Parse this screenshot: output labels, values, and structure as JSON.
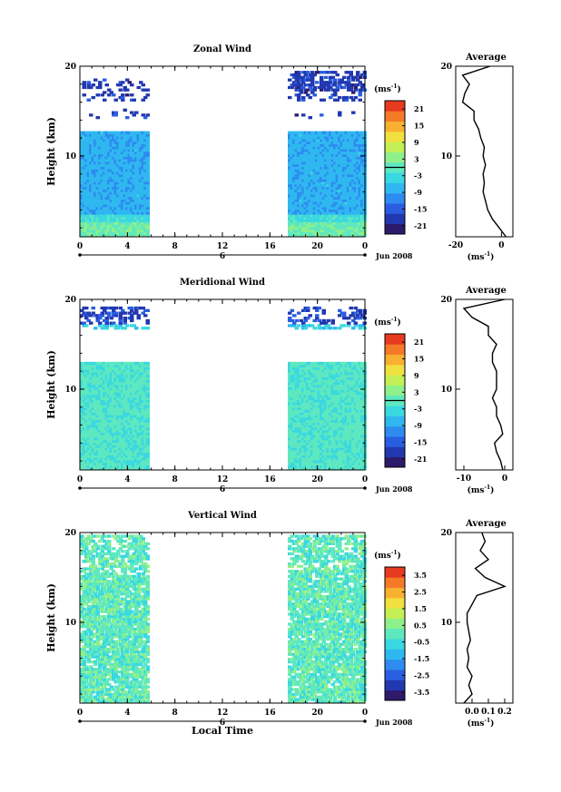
{
  "chart_data": [
    {
      "type": "heatmap",
      "title": "Zonal Wind",
      "ylabel": "Height (km)",
      "xlim": [
        0,
        24
      ],
      "ylim": [
        1,
        20
      ],
      "x_ticks": [
        "0",
        "4",
        "8",
        "12",
        "16",
        "20",
        "0"
      ],
      "y_ticks": [
        "10",
        "20"
      ],
      "date_label": "6",
      "month_label": "Jun 2008",
      "data_spans_hours": [
        [
          0,
          5.7
        ],
        [
          17.5,
          24
        ]
      ],
      "colorbar": {
        "unit": "(ms",
        "unit_sup": "-1",
        "unit_close": ")",
        "min": -24,
        "max": 24,
        "zero_line": 0,
        "tick_values": [
          21,
          15,
          9,
          3,
          -3,
          -9,
          -15,
          -21
        ],
        "tick_labels": [
          "21",
          "15",
          "9",
          "3",
          "-3",
          "-9",
          "-15",
          "-21"
        ]
      },
      "profile": {
        "title": "Average",
        "xlim": [
          -20,
          5
        ],
        "x_ticks": [
          "-20",
          "0"
        ],
        "y_ticks": [
          "10",
          "20"
        ],
        "xlabel": "(ms",
        "xlabel_sup": "-1",
        "xlabel_close": ")",
        "heights": [
          1,
          2,
          3,
          4,
          5,
          6,
          7,
          8,
          9,
          10,
          11,
          12,
          13,
          14,
          15,
          16,
          17,
          18,
          19,
          20
        ],
        "values": [
          2,
          -1,
          -4,
          -6,
          -7,
          -8,
          -7.5,
          -8,
          -7,
          -8,
          -7.5,
          -9,
          -10,
          -12,
          -12,
          -17,
          -16,
          -14,
          -17,
          -5
        ]
      }
    },
    {
      "type": "heatmap",
      "title": "Meridional Wind",
      "ylabel": "Height (km)",
      "xlim": [
        0,
        24
      ],
      "ylim": [
        1,
        20
      ],
      "x_ticks": [
        "0",
        "4",
        "8",
        "12",
        "16",
        "20",
        "0"
      ],
      "y_ticks": [
        "10",
        "20"
      ],
      "date_label": "6",
      "month_label": "Jun 2008",
      "data_spans_hours": [
        [
          0,
          5.7
        ],
        [
          17.5,
          24
        ]
      ],
      "colorbar": {
        "unit": "(ms",
        "unit_sup": "-1",
        "unit_close": ")",
        "min": -24,
        "max": 24,
        "zero_line": 0,
        "tick_values": [
          21,
          15,
          9,
          3,
          -3,
          -9,
          -15,
          -21
        ],
        "tick_labels": [
          "21",
          "15",
          "9",
          "3",
          "-3",
          "-9",
          "-15",
          "-21"
        ]
      },
      "profile": {
        "title": "Average",
        "xlim": [
          -12,
          2
        ],
        "x_ticks": [
          "-10",
          "0"
        ],
        "y_ticks": [
          "10",
          "20"
        ],
        "xlabel": "(ms",
        "xlabel_sup": "-1",
        "xlabel_close": ")",
        "heights": [
          1,
          2,
          3,
          4,
          5,
          6,
          7,
          8,
          9,
          10,
          11,
          12,
          13,
          14,
          15,
          16,
          17,
          18,
          19,
          20
        ],
        "values": [
          -0.5,
          -1,
          -2,
          -2.5,
          -0.5,
          -1,
          -2,
          -2,
          -3,
          -2,
          -2,
          -2,
          -3,
          -3,
          -2,
          -4,
          -4,
          -8,
          -10,
          0
        ]
      }
    },
    {
      "type": "heatmap",
      "title": "Vertical Wind",
      "ylabel": "Height (km)",
      "xlabel": "Local Time",
      "xlim": [
        0,
        24
      ],
      "ylim": [
        1,
        20
      ],
      "x_ticks": [
        "0",
        "4",
        "8",
        "12",
        "16",
        "20",
        "0"
      ],
      "y_ticks": [
        "10",
        "20"
      ],
      "date_label": "6",
      "month_label": "Jun 2008",
      "data_spans_hours": [
        [
          0,
          5.7
        ],
        [
          17.5,
          24
        ]
      ],
      "colorbar": {
        "unit": "(ms",
        "unit_sup": "-1",
        "unit_close": ")",
        "min": -4,
        "max": 4,
        "tick_values": [
          3.5,
          2.5,
          1.5,
          0.5,
          -0.5,
          -1.5,
          -2.5,
          -3.5
        ],
        "tick_labels": [
          "3.5",
          "2.5",
          "1.5",
          "0.5",
          "-0.5",
          "-1.5",
          "-2.5",
          "-3.5"
        ]
      },
      "profile": {
        "title": "Average",
        "xlim": [
          -0.1,
          0.25
        ],
        "x_ticks": [
          "0.0",
          "0.1",
          "0.2"
        ],
        "y_ticks": [
          "10",
          "20"
        ],
        "xlabel": "(ms",
        "xlabel_sup": "-1",
        "xlabel_close": ")",
        "heights": [
          1,
          2,
          3,
          4,
          5,
          6,
          7,
          8,
          9,
          10,
          11,
          12,
          13,
          14,
          15,
          16,
          17,
          18,
          19,
          20
        ],
        "values": [
          -0.05,
          0.0,
          -0.02,
          0.0,
          -0.03,
          -0.02,
          -0.03,
          -0.01,
          -0.02,
          -0.03,
          -0.03,
          0.0,
          0.03,
          0.2,
          0.08,
          0.02,
          0.1,
          0.05,
          0.08,
          0.06
        ]
      }
    }
  ],
  "colormap": [
    "#2e1a6b",
    "#2238b0",
    "#2a5ee0",
    "#2e8cf0",
    "#2fb8f0",
    "#3ad8e0",
    "#5ee8c0",
    "#8ef08a",
    "#c4f056",
    "#f0e040",
    "#f8b030",
    "#f57a28",
    "#e83a20"
  ]
}
